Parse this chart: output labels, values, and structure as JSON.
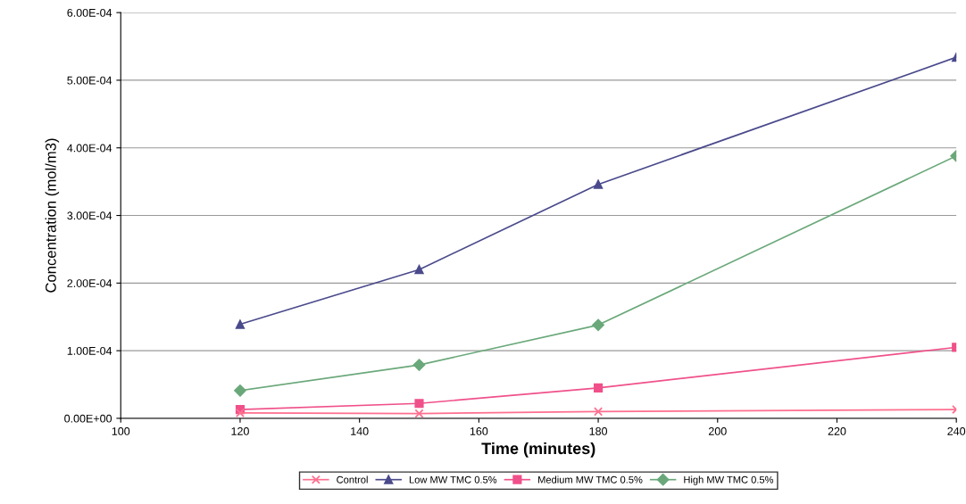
{
  "chart_data": {
    "type": "line",
    "xlabel": "Time (minutes)",
    "ylabel": "Concentration (mol/m3)",
    "x": [
      120,
      150,
      180,
      240
    ],
    "series": [
      {
        "name": "Control",
        "color": "#ff6f8f",
        "marker": "cross",
        "values": [
          8e-06,
          7e-06,
          1e-05,
          1.3e-05
        ]
      },
      {
        "name": "Low MW TMC 0.5%",
        "color": "#4a4a8c",
        "marker": "triangle",
        "values": [
          0.000139,
          0.00022,
          0.000346,
          0.000534
        ]
      },
      {
        "name": "Medium MW TMC 0.5%",
        "color": "#f0508a",
        "marker": "square",
        "values": [
          1.3e-05,
          2.2e-05,
          4.5e-05,
          0.000105
        ]
      },
      {
        "name": "High MW TMC 0.5%",
        "color": "#6aa87a",
        "marker": "diamond",
        "values": [
          4.1e-05,
          7.9e-05,
          0.000138,
          0.000388
        ]
      }
    ],
    "xlim": [
      100,
      240
    ],
    "xticks": [
      100,
      120,
      140,
      160,
      180,
      200,
      220,
      240
    ],
    "ylim": [
      0,
      0.0006
    ],
    "yticks": [
      {
        "value": 0,
        "label": "0.00E+00"
      },
      {
        "value": 0.0001,
        "label": "1.00E-04"
      },
      {
        "value": 0.0002,
        "label": "2.00E-04"
      },
      {
        "value": 0.0003,
        "label": "3.00E-04"
      },
      {
        "value": 0.0004,
        "label": "4.00E-04"
      },
      {
        "value": 0.0005,
        "label": "5.00E-04"
      },
      {
        "value": 0.0006,
        "label": "6.00E-04"
      }
    ],
    "grid": "y",
    "legend": "bottom",
    "line_style": "solid"
  }
}
